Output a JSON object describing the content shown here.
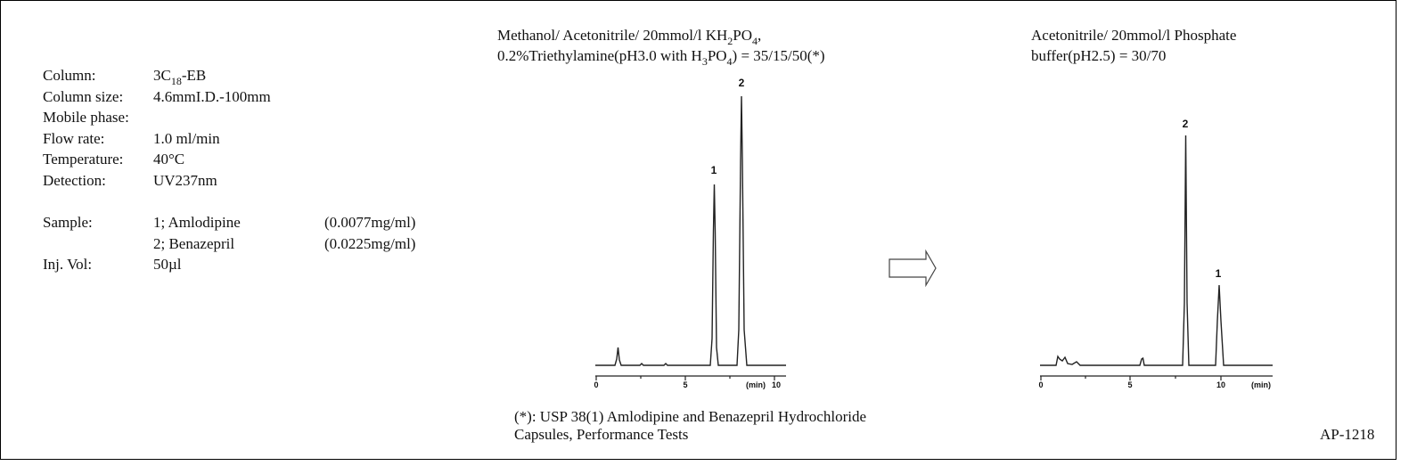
{
  "conditions": [
    {
      "label": "Column:",
      "value": [
        "3C",
        "18",
        "-EB"
      ]
    },
    {
      "label": "Column size:",
      "value": "4.6mmI.D.-100mm"
    },
    {
      "label": "Mobile phase:"
    },
    {
      "label": "Flow rate:",
      "value": "1.0 ml/min"
    },
    {
      "label": "Temperature:",
      "value": "40°C"
    },
    {
      "label": "Detection:",
      "value": "UV237nm"
    }
  ],
  "sample": {
    "label": "Sample:",
    "items": [
      {
        "name": "1; Amlodipine",
        "conc": "(0.0077mg/ml)"
      },
      {
        "name": "2; Benazepril",
        "conc": "(0.0225mg/ml)"
      }
    ]
  },
  "injection": {
    "label": "Inj. Vol:",
    "value": "50µl"
  },
  "method1": {
    "line1": [
      "Methanol/ Acetonitrile/ 20mmol/l KH",
      "2",
      "PO",
      "4",
      ","
    ],
    "line2": [
      "0.2%Triethylamine(pH3.0 with H",
      "3",
      "PO",
      "4",
      ") = 35/15/50(*)"
    ],
    "ticks": [
      "0",
      "5",
      "10"
    ],
    "unit": "(min)",
    "peaks": [
      "1",
      "2"
    ]
  },
  "method2": {
    "line1": "Acetonitrile/ 20mmol/l Phosphate",
    "line2": "buffer(pH2.5) = 30/70",
    "ticks": [
      "0",
      "5",
      "10"
    ],
    "unit": "(min)",
    "peaks": [
      "2",
      "1"
    ]
  },
  "footnote": [
    "(*): USP 38(1) Amlodipine and Benazepril Hydrochloride",
    "Capsules, Performance Tests"
  ],
  "code": "AP-1218"
}
